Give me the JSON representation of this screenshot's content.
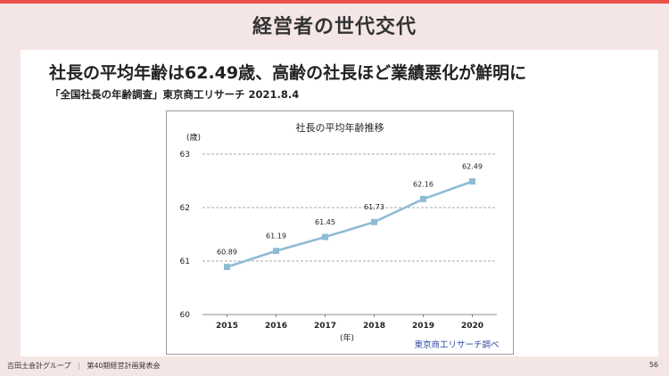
{
  "slide": {
    "title": "経営者の世代交代",
    "headline": "社長の平均年齢は62.49歳、高齢の社長ほど業績悪化が鮮明に",
    "source": "「全国社長の年齢調査」東京商工リサーチ 2021.8.4"
  },
  "footer": {
    "company": "吉田土会計グループ",
    "meeting": "第40期経営計画発表会",
    "page": "56"
  },
  "colors": {
    "accent": "#e8504a",
    "line": "#8fbcd4",
    "marker": "#8fbcd4",
    "credit": "#2c4a9a"
  },
  "chart_data": {
    "type": "line",
    "title": "社長の平均年齢推移",
    "ylabel": "(歳)",
    "xlabel": "(年)",
    "credit": "東京商工リサーチ調べ",
    "categories": [
      "2015",
      "2016",
      "2017",
      "2018",
      "2019",
      "2020"
    ],
    "values": [
      60.89,
      61.19,
      61.45,
      61.73,
      62.16,
      62.49
    ],
    "data_labels": [
      "60.89",
      "61.19",
      "61.45",
      "61.73",
      "62.16",
      "62.49"
    ],
    "ylim": [
      60,
      63
    ],
    "yticks": [
      "60",
      "61",
      "62",
      "63"
    ],
    "grid": true
  }
}
